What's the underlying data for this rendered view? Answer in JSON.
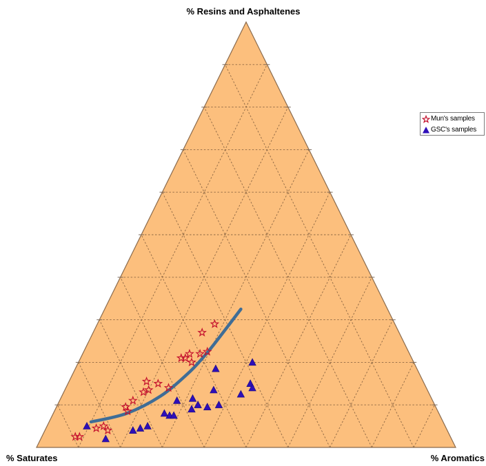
{
  "chart_data": {
    "type": "scatter",
    "subtype": "ternary",
    "vertex_labels": {
      "top": "% Resins and Asphaltenes",
      "left": "% Saturates",
      "right": "% Aromatics"
    },
    "grid": true,
    "grid_step": 10,
    "legend_position": "right",
    "colors": {
      "background": "#fcbf7d",
      "frame": "#8a6a4c",
      "grid": "#8e6844",
      "mun_marker": "#c4122e",
      "gsc_marker": "#2e0fb8",
      "trend_line": "#3f6d96"
    },
    "series": [
      {
        "name": "Mun's samples",
        "marker": "star-open",
        "points": [
          {
            "saturates": 89.5,
            "aromatics": 8.0,
            "resins_asphaltenes": 2.5
          },
          {
            "saturates": 88.5,
            "aromatics": 9.0,
            "resins_asphaltenes": 2.5
          },
          {
            "saturates": 83.5,
            "aromatics": 12.0,
            "resins_asphaltenes": 4.5
          },
          {
            "saturates": 81.5,
            "aromatics": 13.5,
            "resins_asphaltenes": 5.0
          },
          {
            "saturates": 81.0,
            "aromatics": 15.0,
            "resins_asphaltenes": 4.0
          },
          {
            "saturates": 74.0,
            "aromatics": 16.5,
            "resins_asphaltenes": 9.5
          },
          {
            "saturates": 74.0,
            "aromatics": 17.5,
            "resins_asphaltenes": 8.5
          },
          {
            "saturates": 71.5,
            "aromatics": 17.5,
            "resins_asphaltenes": 11.0
          },
          {
            "saturates": 68.0,
            "aromatics": 19.0,
            "resins_asphaltenes": 13.0
          },
          {
            "saturates": 66.5,
            "aromatics": 20.0,
            "resins_asphaltenes": 13.5
          },
          {
            "saturates": 66.0,
            "aromatics": 18.5,
            "resins_asphaltenes": 15.5
          },
          {
            "saturates": 63.5,
            "aromatics": 21.5,
            "resins_asphaltenes": 15.0
          },
          {
            "saturates": 61.5,
            "aromatics": 24.5,
            "resins_asphaltenes": 14.0
          },
          {
            "saturates": 55.0,
            "aromatics": 24.0,
            "resins_asphaltenes": 21.0
          },
          {
            "saturates": 54.0,
            "aromatics": 25.0,
            "resins_asphaltenes": 21.0
          },
          {
            "saturates": 53.0,
            "aromatics": 27.0,
            "resins_asphaltenes": 20.0
          },
          {
            "saturates": 52.5,
            "aromatics": 25.5,
            "resins_asphaltenes": 22.0
          },
          {
            "saturates": 50.0,
            "aromatics": 28.0,
            "resins_asphaltenes": 22.0
          },
          {
            "saturates": 48.0,
            "aromatics": 29.5,
            "resins_asphaltenes": 22.5
          },
          {
            "saturates": 47.0,
            "aromatics": 26.0,
            "resins_asphaltenes": 27.0
          },
          {
            "saturates": 43.0,
            "aromatics": 28.0,
            "resins_asphaltenes": 29.0
          }
        ]
      },
      {
        "name": "GSC's samples",
        "marker": "triangle-filled",
        "points": [
          {
            "saturates": 85.5,
            "aromatics": 9.5,
            "resins_asphaltenes": 5.0
          },
          {
            "saturates": 82.5,
            "aromatics": 15.5,
            "resins_asphaltenes": 2.0
          },
          {
            "saturates": 75.0,
            "aromatics": 21.0,
            "resins_asphaltenes": 4.0
          },
          {
            "saturates": 73.0,
            "aromatics": 22.5,
            "resins_asphaltenes": 4.5
          },
          {
            "saturates": 71.0,
            "aromatics": 24.0,
            "resins_asphaltenes": 5.0
          },
          {
            "saturates": 65.5,
            "aromatics": 26.5,
            "resins_asphaltenes": 8.0
          },
          {
            "saturates": 64.5,
            "aromatics": 28.0,
            "resins_asphaltenes": 7.5
          },
          {
            "saturates": 63.5,
            "aromatics": 29.0,
            "resins_asphaltenes": 7.5
          },
          {
            "saturates": 61.0,
            "aromatics": 28.0,
            "resins_asphaltenes": 11.0
          },
          {
            "saturates": 57.0,
            "aromatics": 31.5,
            "resins_asphaltenes": 11.5
          },
          {
            "saturates": 58.5,
            "aromatics": 32.5,
            "resins_asphaltenes": 9.0
          },
          {
            "saturates": 56.5,
            "aromatics": 33.5,
            "resins_asphaltenes": 10.0
          },
          {
            "saturates": 54.5,
            "aromatics": 36.0,
            "resins_asphaltenes": 9.5
          },
          {
            "saturates": 51.0,
            "aromatics": 35.5,
            "resins_asphaltenes": 13.5
          },
          {
            "saturates": 51.5,
            "aromatics": 38.5,
            "resins_asphaltenes": 10.0
          },
          {
            "saturates": 48.0,
            "aromatics": 33.5,
            "resins_asphaltenes": 18.5
          },
          {
            "saturates": 45.0,
            "aromatics": 42.5,
            "resins_asphaltenes": 12.5
          },
          {
            "saturates": 41.5,
            "aromatics": 43.5,
            "resins_asphaltenes": 15.0
          },
          {
            "saturates": 41.5,
            "aromatics": 44.5,
            "resins_asphaltenes": 14.0
          },
          {
            "saturates": 38.5,
            "aromatics": 41.5,
            "resins_asphaltenes": 20.0
          }
        ]
      }
    ],
    "trend_line": [
      {
        "saturates": 84.0,
        "aromatics": 10.0,
        "resins_asphaltenes": 6.0
      },
      {
        "saturates": 74.5,
        "aromatics": 17.5,
        "resins_asphaltenes": 8.0
      },
      {
        "saturates": 64.5,
        "aromatics": 23.5,
        "resins_asphaltenes": 12.0
      },
      {
        "saturates": 55.0,
        "aromatics": 27.5,
        "resins_asphaltenes": 17.5
      },
      {
        "saturates": 48.5,
        "aromatics": 29.5,
        "resins_asphaltenes": 22.0
      },
      {
        "saturates": 42.0,
        "aromatics": 31.0,
        "resins_asphaltenes": 27.0
      },
      {
        "saturates": 35.0,
        "aromatics": 32.5,
        "resins_asphaltenes": 32.5
      }
    ]
  }
}
